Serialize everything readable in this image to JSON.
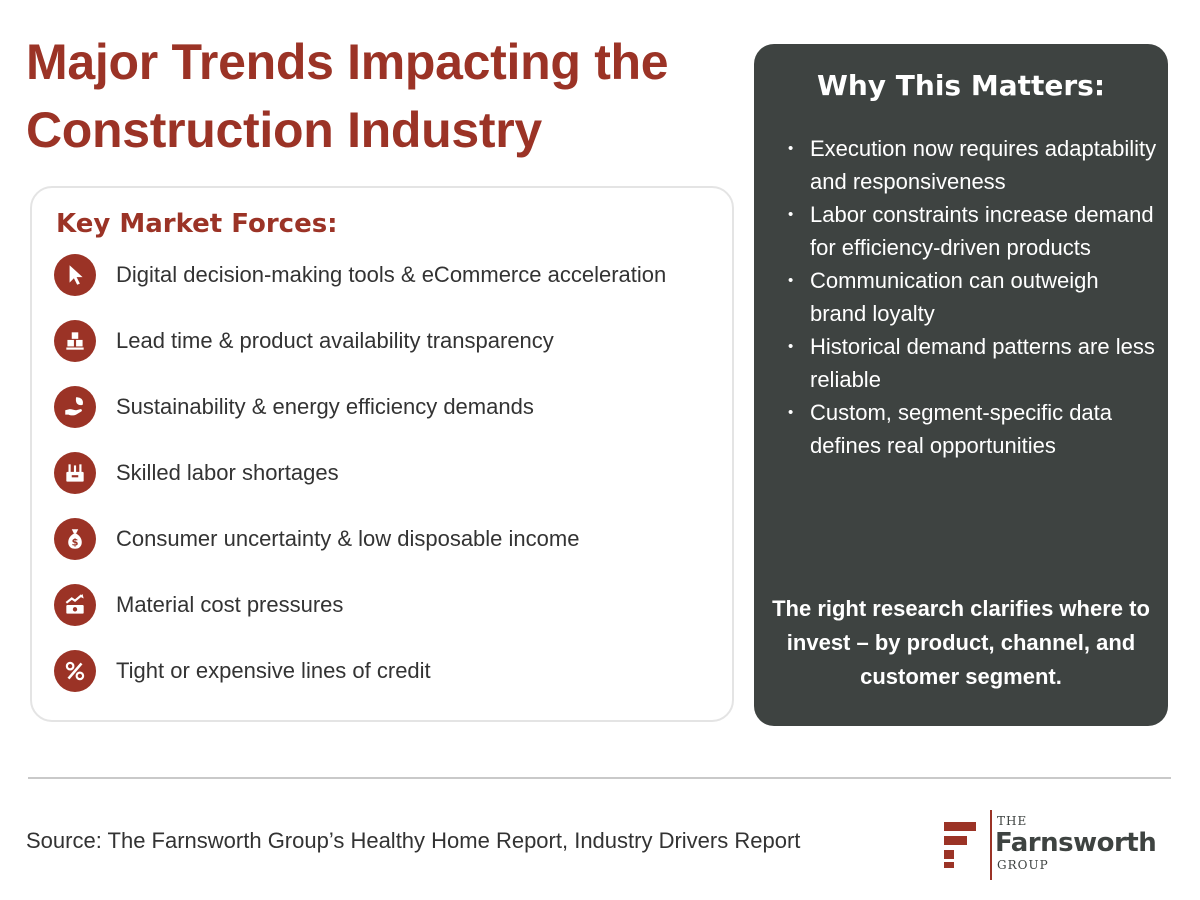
{
  "title": "Major Trends Impacting the Construction Industry",
  "forces": {
    "heading": "Key Market Forces:",
    "items": [
      {
        "icon": "cursor-icon",
        "label": "Digital decision-making tools & eCommerce acceleration"
      },
      {
        "icon": "boxes-icon",
        "label": "Lead time & product availability transparency"
      },
      {
        "icon": "hand-leaf-icon",
        "label": "Sustainability & energy efficiency demands"
      },
      {
        "icon": "toolbox-icon",
        "label": "Skilled labor shortages"
      },
      {
        "icon": "money-bag-icon",
        "label": "Consumer uncertainty & low disposable income"
      },
      {
        "icon": "cost-trend-icon",
        "label": "Material cost pressures"
      },
      {
        "icon": "percent-icon",
        "label": "Tight or expensive lines of credit"
      }
    ]
  },
  "matters": {
    "title": "Why This Matters:",
    "bullets": [
      "Execution now requires adaptability and responsiveness",
      "Labor constraints increase demand for efficiency-driven products",
      "Communication can outweigh brand loyalty",
      "Historical demand patterns are less reliable",
      "Custom, segment-specific data defines real opportunities"
    ],
    "callout": "The right research clarifies where to invest – by product, channel, and customer segment."
  },
  "source": "Source: The Farnsworth Group’s Healthy Home Report, Industry Drivers Report",
  "logo": {
    "the": "THE",
    "name": "Farnsworth",
    "group": "GROUP"
  },
  "colors": {
    "brand_red": "#9b3326",
    "panel_dark": "#3e4341",
    "text": "#333333"
  }
}
